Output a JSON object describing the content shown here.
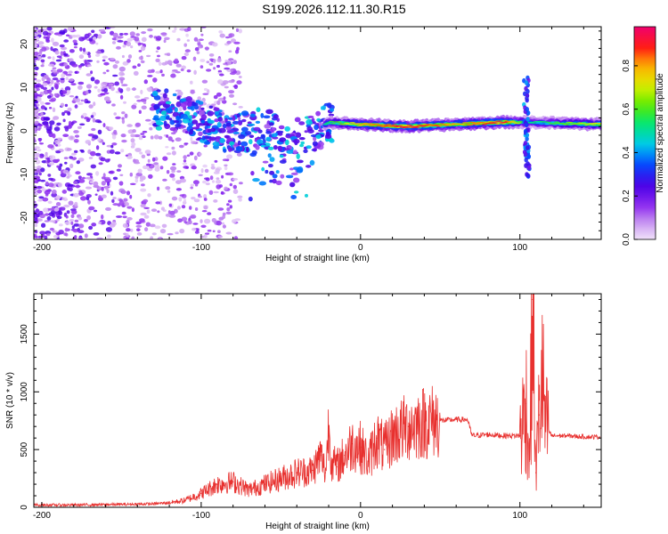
{
  "title": "S199.2026.112.11.30.R15",
  "chart_data": [
    {
      "type": "heatmap",
      "title": "S199.2026.112.11.30.R15",
      "xlabel": "Height of straight line (km)",
      "ylabel": "Frequency (Hz)",
      "xlim": [
        -205,
        151
      ],
      "ylim": [
        -25,
        24
      ],
      "xticks": [
        -200,
        -100,
        0,
        100
      ],
      "yticks": [
        -20,
        -10,
        0,
        10,
        20
      ],
      "colorbar": {
        "label": "Normalized spectral amplitude",
        "range": [
          0.0,
          0.98
        ],
        "ticks": [
          0.0,
          0.2,
          0.4,
          0.6,
          0.8
        ]
      },
      "ridge": [
        {
          "x": -120,
          "y": 5,
          "amp": 0.25
        },
        {
          "x": -100,
          "y": 2,
          "amp": 0.3
        },
        {
          "x": -80,
          "y": -1,
          "amp": 0.3
        },
        {
          "x": -60,
          "y": 1,
          "amp": 0.35
        },
        {
          "x": -45,
          "y": -2,
          "amp": 0.4
        },
        {
          "x": -30,
          "y": -1,
          "amp": 0.45
        },
        {
          "x": -20,
          "y": 2,
          "amp": 0.55
        },
        {
          "x": 0,
          "y": 1.5,
          "amp": 0.8
        },
        {
          "x": 30,
          "y": 1,
          "amp": 0.95
        },
        {
          "x": 60,
          "y": 1.5,
          "amp": 0.8
        },
        {
          "x": 90,
          "y": 2,
          "amp": 0.95
        },
        {
          "x": 105,
          "y": 2,
          "amp": 0.5
        },
        {
          "x": 150,
          "y": 1.5,
          "amp": 0.75
        }
      ]
    },
    {
      "type": "line",
      "xlabel": "Height of straight line (km)",
      "ylabel": "SNR (10 * v/v)",
      "xlim": [
        -205,
        151
      ],
      "ylim": [
        0,
        1850
      ],
      "xticks": [
        -200,
        -100,
        0,
        100
      ],
      "yticks": [
        0,
        500,
        1000,
        1500
      ],
      "series": [
        {
          "name": "SNR",
          "color": "#e8312f",
          "x": [
            -205,
            -180,
            -150,
            -130,
            -120,
            -110,
            -100,
            -90,
            -80,
            -70,
            -60,
            -50,
            -40,
            -30,
            -25,
            -22,
            -20,
            -18,
            -15,
            -10,
            -5,
            0,
            5,
            10,
            15,
            20,
            30,
            40,
            50,
            60,
            67,
            70,
            80,
            90,
            100,
            104,
            106,
            108,
            110,
            112,
            114,
            116,
            120,
            130,
            140,
            150
          ],
          "y": [
            20,
            20,
            25,
            30,
            40,
            60,
            120,
            200,
            220,
            150,
            200,
            250,
            300,
            320,
            450,
            300,
            700,
            400,
            350,
            450,
            550,
            520,
            400,
            600,
            500,
            620,
            700,
            740,
            750,
            760,
            760,
            620,
            630,
            620,
            620,
            900,
            400,
            1800,
            300,
            800,
            1150,
            700,
            620,
            620,
            610,
            610
          ]
        }
      ]
    }
  ]
}
